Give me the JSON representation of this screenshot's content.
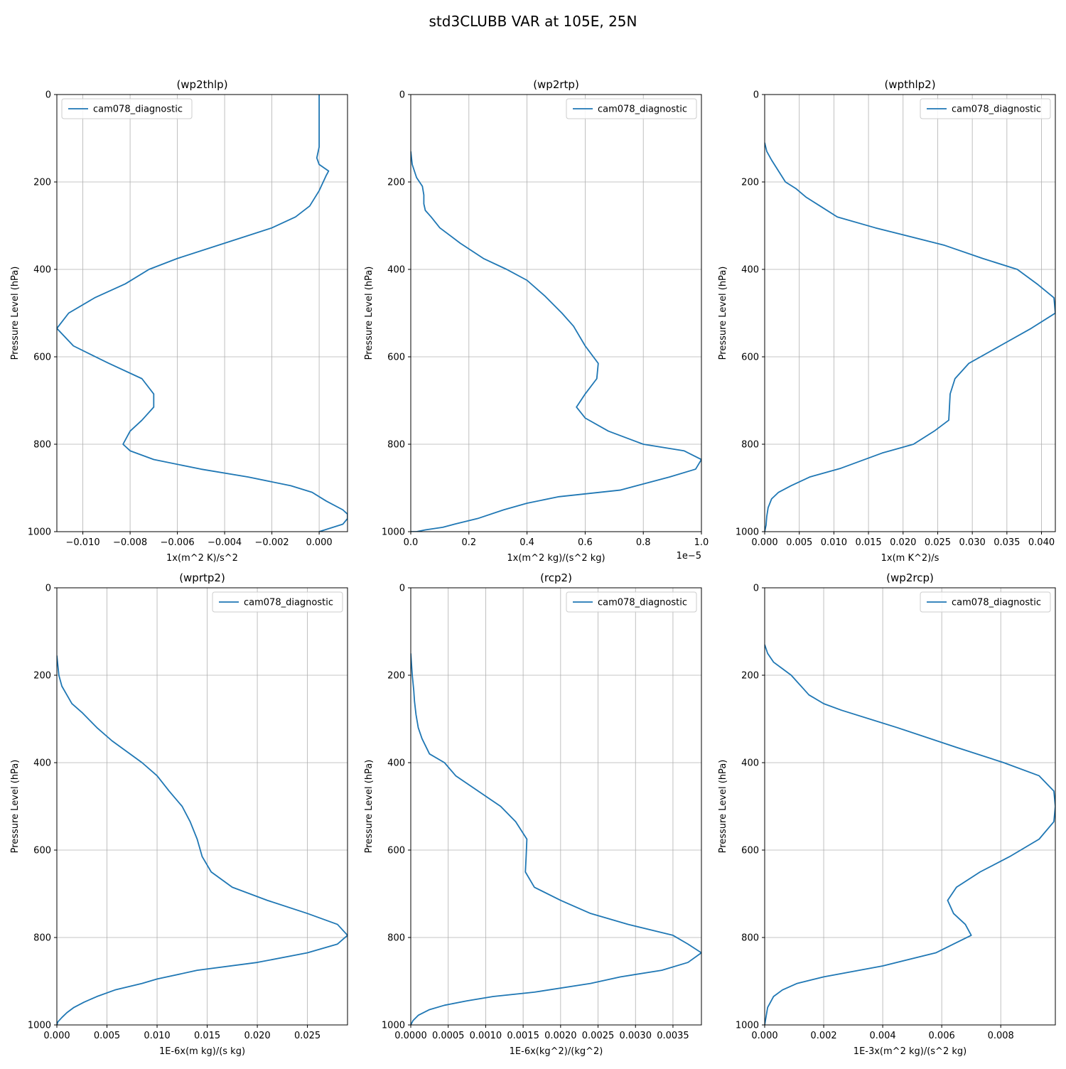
{
  "figure": {
    "title": "std3CLUBB VAR at 105E, 25N"
  },
  "chart_data": [
    {
      "type": "line",
      "title": "(wp2thlp)",
      "xlabel": "1x(m^2 K)/s^2",
      "ylabel": "Pressure Level (hPa)",
      "xlim": [
        -0.0111,
        0.0012
      ],
      "ylim": [
        1000,
        0
      ],
      "xticks": [
        -0.01,
        -0.008,
        -0.006,
        -0.004,
        -0.002,
        0.0
      ],
      "xtick_labels": [
        "−0.010",
        "−0.008",
        "−0.006",
        "−0.004",
        "−0.002",
        "0.000"
      ],
      "yticks": [
        0,
        200,
        400,
        600,
        800,
        1000
      ],
      "ytick_labels": [
        "0",
        "200",
        "400",
        "600",
        "800",
        "1000"
      ],
      "offset_text": "",
      "grid": true,
      "legend_loc": "upper-left",
      "series": [
        {
          "name": "cam078_diagnostic",
          "color": "#1f77b4",
          "x": [
            0.0,
            0.0,
            0.0,
            -0.0001,
            0.0,
            0.0004,
            0.0003,
            0.0,
            -0.0004,
            -0.001,
            -0.002,
            -0.004,
            -0.006,
            -0.0072,
            -0.0082,
            -0.0095,
            -0.0106,
            -0.0111,
            -0.0104,
            -0.0089,
            -0.0075,
            -0.007,
            -0.007,
            -0.0075,
            -0.008,
            -0.0083,
            -0.008,
            -0.007,
            -0.005,
            -0.003,
            -0.0012,
            -0.0003,
            0.0003,
            0.001,
            0.0012,
            0.0012,
            0.001,
            0.0
          ],
          "y": [
            0,
            100,
            120,
            145,
            160,
            175,
            185,
            220,
            255,
            280,
            305,
            340,
            375,
            400,
            433,
            465,
            500,
            535,
            575,
            615,
            650,
            685,
            715,
            745,
            770,
            800,
            815,
            835,
            857,
            875,
            895,
            910,
            930,
            950,
            960,
            970,
            983,
            1000
          ]
        }
      ]
    },
    {
      "type": "line",
      "title": "(wp2rtp)",
      "xlabel": "1x(m^2 kg)/(s^2 kg)",
      "ylabel": "Pressure Level (hPa)",
      "xlim": [
        0,
        1.0
      ],
      "ylim": [
        1000,
        0
      ],
      "xticks": [
        0,
        0.2,
        0.4,
        0.6,
        0.8,
        1.0
      ],
      "xtick_labels": [
        "0.0",
        "0.2",
        "0.4",
        "0.6",
        "0.8",
        "1.0"
      ],
      "yticks": [
        0,
        200,
        400,
        600,
        800,
        1000
      ],
      "ytick_labels": [
        "0",
        "200",
        "400",
        "600",
        "800",
        "1000"
      ],
      "offset_text": "1e−5",
      "grid": true,
      "legend_loc": "upper-right",
      "series": [
        {
          "name": "cam078_diagnostic",
          "color": "#1f77b4",
          "x": [
            0.0,
            0.005,
            0.02,
            0.04,
            0.045,
            0.045,
            0.05,
            0.07,
            0.1,
            0.17,
            0.25,
            0.33,
            0.4,
            0.46,
            0.52,
            0.56,
            0.6,
            0.645,
            0.64,
            0.6,
            0.57,
            0.6,
            0.68,
            0.8,
            0.94,
            1.0,
            0.98,
            0.89,
            0.72,
            0.51,
            0.4,
            0.32,
            0.23,
            0.15,
            0.11,
            0.05,
            0.02,
            0.0
          ],
          "y": [
            130,
            160,
            190,
            210,
            230,
            250,
            265,
            280,
            305,
            340,
            375,
            400,
            425,
            460,
            500,
            530,
            575,
            615,
            650,
            685,
            715,
            740,
            770,
            800,
            815,
            835,
            857,
            875,
            905,
            920,
            935,
            950,
            970,
            983,
            990,
            996,
            1000,
            1000
          ]
        }
      ]
    },
    {
      "type": "line",
      "title": "(wpthlp2)",
      "xlabel": "1x(m K^2)/s",
      "ylabel": "Pressure Level (hPa)",
      "xlim": [
        0,
        0.042
      ],
      "ylim": [
        1000,
        0
      ],
      "xticks": [
        0,
        0.005,
        0.01,
        0.015,
        0.02,
        0.025,
        0.03,
        0.035,
        0.04
      ],
      "xtick_labels": [
        "0.000",
        "0.005",
        "0.010",
        "0.015",
        "0.020",
        "0.025",
        "0.030",
        "0.035",
        "0.040"
      ],
      "yticks": [
        0,
        200,
        400,
        600,
        800,
        1000
      ],
      "ytick_labels": [
        "0",
        "200",
        "400",
        "600",
        "800",
        "1000"
      ],
      "offset_text": "",
      "grid": true,
      "legend_loc": "upper-right",
      "series": [
        {
          "name": "cam078_diagnostic",
          "color": "#1f77b4",
          "x": [
            0.0,
            0.0003,
            0.001,
            0.002,
            0.003,
            0.0045,
            0.006,
            0.008,
            0.0105,
            0.016,
            0.026,
            0.0315,
            0.0365,
            0.0395,
            0.0418,
            0.042,
            0.0385,
            0.034,
            0.0295,
            0.0275,
            0.0268,
            0.0267,
            0.0266,
            0.0245,
            0.0215,
            0.017,
            0.011,
            0.0065,
            0.0038,
            0.002,
            0.001,
            0.0005,
            0.0003,
            0.0002,
            0.0
          ],
          "y": [
            110,
            130,
            150,
            175,
            200,
            215,
            235,
            255,
            280,
            305,
            345,
            375,
            400,
            435,
            465,
            500,
            535,
            575,
            615,
            650,
            685,
            715,
            745,
            770,
            800,
            820,
            855,
            875,
            895,
            910,
            925,
            945,
            965,
            985,
            1000
          ]
        }
      ]
    },
    {
      "type": "line",
      "title": "(wprtp2)",
      "xlabel": "1E-6x(m kg)/(s kg)",
      "ylabel": "Pressure Level (hPa)",
      "xlim": [
        0,
        0.029
      ],
      "ylim": [
        1000,
        0
      ],
      "xticks": [
        0,
        0.005,
        0.01,
        0.015,
        0.02,
        0.025
      ],
      "xtick_labels": [
        "0.000",
        "0.005",
        "0.010",
        "0.015",
        "0.020",
        "0.025"
      ],
      "yticks": [
        0,
        200,
        400,
        600,
        800,
        1000
      ],
      "ytick_labels": [
        "0",
        "200",
        "400",
        "600",
        "800",
        "1000"
      ],
      "offset_text": "",
      "grid": true,
      "legend_loc": "upper-right",
      "series": [
        {
          "name": "cam078_diagnostic",
          "color": "#1f77b4",
          "x": [
            0.0,
            0.0002,
            0.0005,
            0.001,
            0.0015,
            0.0025,
            0.004,
            0.0055,
            0.0085,
            0.01,
            0.0112,
            0.0125,
            0.0133,
            0.014,
            0.0145,
            0.0154,
            0.0175,
            0.021,
            0.025,
            0.028,
            0.029,
            0.028,
            0.025,
            0.02,
            0.014,
            0.01,
            0.0085,
            0.0058,
            0.004,
            0.0027,
            0.0017,
            0.001,
            0.0005,
            0.0001,
            0.0
          ],
          "y": [
            155,
            200,
            225,
            245,
            265,
            285,
            320,
            350,
            400,
            430,
            465,
            500,
            535,
            575,
            615,
            650,
            685,
            715,
            745,
            770,
            795,
            815,
            835,
            857,
            875,
            895,
            905,
            920,
            935,
            948,
            960,
            972,
            983,
            993,
            1000
          ]
        }
      ]
    },
    {
      "type": "line",
      "title": "(rcp2)",
      "xlabel": "1E-6x(kg^2)/(kg^2)",
      "ylabel": "Pressure Level (hPa)",
      "xlim": [
        0,
        0.00388
      ],
      "ylim": [
        1000,
        0
      ],
      "xticks": [
        0,
        0.0005,
        0.001,
        0.0015,
        0.002,
        0.0025,
        0.003,
        0.0035
      ],
      "xtick_labels": [
        "0.0000",
        "0.0005",
        "0.0010",
        "0.0015",
        "0.0020",
        "0.0025",
        "0.0030",
        "0.0035"
      ],
      "yticks": [
        0,
        200,
        400,
        600,
        800,
        1000
      ],
      "ytick_labels": [
        "0",
        "200",
        "400",
        "600",
        "800",
        "1000"
      ],
      "offset_text": "",
      "grid": true,
      "legend_loc": "upper-right",
      "series": [
        {
          "name": "cam078_diagnostic",
          "color": "#1f77b4",
          "x": [
            0.0,
            2e-05,
            4e-05,
            5e-05,
            7e-05,
            0.0001,
            0.00015,
            0.00025,
            0.00045,
            0.0006,
            0.0009,
            0.0012,
            0.0014,
            0.00155,
            0.00154,
            0.00153,
            0.00165,
            0.002,
            0.0024,
            0.0029,
            0.0035,
            0.0037,
            0.00388,
            0.0037,
            0.00335,
            0.0028,
            0.0024,
            0.00165,
            0.0011,
            0.00075,
            0.00045,
            0.00025,
            0.0001,
            3e-05,
            0.0
          ],
          "y": [
            150,
            200,
            235,
            260,
            290,
            320,
            345,
            380,
            400,
            430,
            465,
            500,
            535,
            575,
            615,
            650,
            685,
            715,
            745,
            770,
            795,
            815,
            835,
            857,
            875,
            890,
            905,
            925,
            935,
            945,
            955,
            965,
            978,
            990,
            1000
          ]
        }
      ]
    },
    {
      "type": "line",
      "title": "(wp2rcp)",
      "xlabel": "1E-3x(m^2 kg)/(s^2 kg)",
      "ylabel": "Pressure Level (hPa)",
      "xlim": [
        0,
        0.00985
      ],
      "ylim": [
        1000,
        0
      ],
      "xticks": [
        0,
        0.002,
        0.004,
        0.006,
        0.008
      ],
      "xtick_labels": [
        "0.000",
        "0.002",
        "0.004",
        "0.006",
        "0.008"
      ],
      "yticks": [
        0,
        200,
        400,
        600,
        800,
        1000
      ],
      "ytick_labels": [
        "0",
        "200",
        "400",
        "600",
        "800",
        "1000"
      ],
      "offset_text": "",
      "grid": true,
      "legend_loc": "upper-right",
      "series": [
        {
          "name": "cam078_diagnostic",
          "color": "#1f77b4",
          "x": [
            0.0,
            0.0001,
            0.0003,
            0.0006,
            0.0009,
            0.0011,
            0.0013,
            0.0015,
            0.002,
            0.0026,
            0.0045,
            0.0065,
            0.0081,
            0.0093,
            0.0098,
            0.00985,
            0.0098,
            0.0093,
            0.0083,
            0.0073,
            0.0065,
            0.0062,
            0.0064,
            0.0068,
            0.007,
            0.0064,
            0.0058,
            0.004,
            0.002,
            0.0011,
            0.0006,
            0.0003,
            0.0001,
            0.0
          ],
          "y": [
            130,
            150,
            170,
            185,
            200,
            215,
            230,
            245,
            265,
            280,
            320,
            365,
            400,
            430,
            465,
            500,
            535,
            575,
            615,
            650,
            685,
            715,
            745,
            770,
            795,
            815,
            835,
            865,
            890,
            905,
            920,
            935,
            960,
            1000
          ]
        }
      ]
    }
  ]
}
